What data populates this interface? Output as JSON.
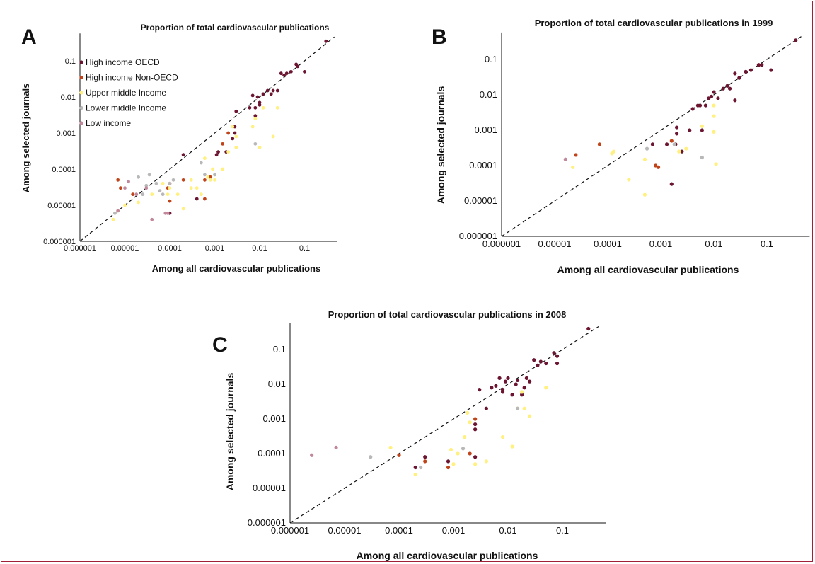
{
  "colors": {
    "High income OECD": "#6b1530",
    "High income Non-OECD": "#c0441a",
    "Upper middle Income": "#fff080",
    "Lower middle Income": "#b8b8b8",
    "Low income": "#c0889a",
    "frame": "#a0203a"
  },
  "chart_data": [
    {
      "panel": "A",
      "type": "scatter",
      "title": "Proportion of total cardiovascular publications",
      "xlabel": "Among all cardiovascular publications",
      "ylabel": "Among selected journals",
      "xscale": "log",
      "yscale": "log",
      "xlim": [
        1e-06,
        0.4
      ],
      "ylim": [
        1e-06,
        0.4
      ],
      "xticks": [
        "0.000001",
        "0.00001",
        "0.0001",
        "0.001",
        "0.01",
        "0.1"
      ],
      "yticks": [
        "0.000001",
        "0.00001",
        "0.0001",
        "0.001",
        "0.01",
        "0.1"
      ],
      "reference_line": "y = x (dashed)",
      "legend": [
        "High income OECD",
        "High income Non-OECD",
        "Upper middle Income",
        "Lower middle Income",
        "Low income"
      ],
      "legend_position": "top-left",
      "series": [
        {
          "name": "High income OECD",
          "points": [
            [
              0.3,
              0.35
            ],
            [
              0.1,
              0.05
            ],
            [
              0.07,
              0.07
            ],
            [
              0.065,
              0.08
            ],
            [
              0.05,
              0.05
            ],
            [
              0.04,
              0.045
            ],
            [
              0.035,
              0.04
            ],
            [
              0.03,
              0.045
            ],
            [
              0.025,
              0.015
            ],
            [
              0.02,
              0.015
            ],
            [
              0.018,
              0.012
            ],
            [
              0.015,
              0.015
            ],
            [
              0.012,
              0.012
            ],
            [
              0.01,
              0.007
            ],
            [
              0.01,
              0.006
            ],
            [
              0.009,
              0.01
            ],
            [
              0.008,
              0.003
            ],
            [
              0.008,
              0.005
            ],
            [
              0.007,
              0.011
            ],
            [
              0.006,
              0.005
            ],
            [
              0.003,
              0.004
            ],
            [
              0.0028,
              0.0015
            ],
            [
              0.0028,
              0.001
            ],
            [
              0.0025,
              0.0007
            ],
            [
              0.0018,
              0.0003
            ],
            [
              0.0012,
              0.0003
            ],
            [
              0.0011,
              0.00025
            ],
            [
              0.0002,
              0.00025
            ],
            [
              0.0004,
              1.5e-05
            ],
            [
              0.0001,
              6e-06
            ]
          ]
        },
        {
          "name": "High income Non-OECD",
          "points": [
            [
              7e-06,
              5e-05
            ],
            [
              8e-06,
              3e-05
            ],
            [
              1.5e-05,
              2e-05
            ],
            [
              9e-05,
              3e-05
            ],
            [
              0.0001,
              1.3e-05
            ],
            [
              0.0001,
              4e-05
            ],
            [
              0.0002,
              5e-05
            ],
            [
              0.0006,
              5e-05
            ],
            [
              0.0006,
              1.5e-05
            ],
            [
              0.0008,
              6e-05
            ],
            [
              0.0015,
              0.0005
            ],
            [
              0.002,
              0.001
            ]
          ]
        },
        {
          "name": "Upper middle Income",
          "points": [
            [
              5.5e-06,
              4e-06
            ],
            [
              7e-06,
              7e-06
            ],
            [
              1e-05,
              1e-05
            ],
            [
              2e-05,
              1.2e-05
            ],
            [
              4e-05,
              2e-05
            ],
            [
              7e-05,
              4e-05
            ],
            [
              9e-05,
              2e-05
            ],
            [
              0.0001,
              3e-05
            ],
            [
              0.00015,
              2e-05
            ],
            [
              0.0002,
              8e-06
            ],
            [
              0.0003,
              3e-05
            ],
            [
              0.0003,
              5e-05
            ],
            [
              0.0004,
              3e-05
            ],
            [
              0.0005,
              2e-05
            ],
            [
              0.0006,
              0.0002
            ],
            [
              0.0007,
              6e-05
            ],
            [
              0.0008,
              5e-05
            ],
            [
              0.0009,
              0.0001
            ],
            [
              0.001,
              5e-05
            ],
            [
              0.0015,
              0.0001
            ],
            [
              0.002,
              0.0003
            ],
            [
              0.0025,
              0.0015
            ],
            [
              0.003,
              0.0008
            ],
            [
              0.007,
              0.0015
            ],
            [
              0.008,
              0.0025
            ],
            [
              0.01,
              0.0004
            ],
            [
              0.012,
              0.005
            ],
            [
              0.02,
              0.0008
            ],
            [
              0.025,
              0.005
            ],
            [
              0.003,
              0.0004
            ]
          ]
        },
        {
          "name": "Lower middle Income",
          "points": [
            [
              6e-06,
              6e-06
            ],
            [
              2e-05,
              6e-05
            ],
            [
              2.5e-05,
              2e-05
            ],
            [
              3e-05,
              3.5e-05
            ],
            [
              3.5e-05,
              7e-05
            ],
            [
              5e-05,
              4e-05
            ],
            [
              6e-05,
              2.5e-05
            ],
            [
              7e-05,
              2e-05
            ],
            [
              0.0001,
              4e-05
            ],
            [
              0.00012,
              5e-05
            ],
            [
              0.0005,
              0.00015
            ],
            [
              0.0006,
              7e-05
            ],
            [
              0.001,
              7e-05
            ],
            [
              0.008,
              0.0005
            ]
          ]
        },
        {
          "name": "Low income",
          "points": [
            [
              7e-06,
              7e-06
            ],
            [
              1e-05,
              3e-05
            ],
            [
              1.2e-05,
              4.5e-05
            ],
            [
              1.8e-05,
              2e-05
            ],
            [
              3e-05,
              3e-05
            ],
            [
              4e-05,
              4e-06
            ],
            [
              8e-05,
              6e-06
            ],
            [
              9e-05,
              6e-06
            ]
          ]
        }
      ]
    },
    {
      "panel": "B",
      "type": "scatter",
      "title": "Proportion of total cardiovascular publications in 1999",
      "xlabel": "Among all cardiovascular publications",
      "ylabel": "Among selected journals",
      "xscale": "log",
      "yscale": "log",
      "xlim": [
        1e-06,
        0.5
      ],
      "ylim": [
        1e-06,
        0.4
      ],
      "xticks": [
        "0.000001",
        "0.00001",
        "0.0001",
        "0.001",
        "0.01",
        "0.1"
      ],
      "yticks": [
        "0.000001",
        "0.00001",
        "0.0001",
        "0.001",
        "0.01",
        "0.1"
      ],
      "reference_line": "y = x (dashed)",
      "series": [
        {
          "name": "High income OECD",
          "points": [
            [
              0.35,
              0.35
            ],
            [
              0.12,
              0.05
            ],
            [
              0.08,
              0.07
            ],
            [
              0.07,
              0.07
            ],
            [
              0.05,
              0.05
            ],
            [
              0.04,
              0.045
            ],
            [
              0.03,
              0.03
            ],
            [
              0.025,
              0.04
            ],
            [
              0.02,
              0.015
            ],
            [
              0.018,
              0.018
            ],
            [
              0.015,
              0.015
            ],
            [
              0.012,
              0.008
            ],
            [
              0.01,
              0.012
            ],
            [
              0.009,
              0.009
            ],
            [
              0.008,
              0.008
            ],
            [
              0.007,
              0.005
            ],
            [
              0.0055,
              0.005
            ],
            [
              0.005,
              0.005
            ],
            [
              0.004,
              0.004
            ],
            [
              0.0035,
              0.001
            ],
            [
              0.0025,
              0.00025
            ],
            [
              0.002,
              0.0012
            ],
            [
              0.002,
              0.0008
            ],
            [
              0.0019,
              0.0004
            ],
            [
              0.0013,
              0.0004
            ],
            [
              0.0016,
              3e-05
            ],
            [
              0.006,
              0.001
            ],
            [
              0.025,
              0.007
            ],
            [
              0.0007,
              0.0004
            ]
          ]
        },
        {
          "name": "High income Non-OECD",
          "points": [
            [
              2.5e-05,
              0.0002
            ],
            [
              7e-05,
              0.0004
            ],
            [
              0.0008,
              0.0001
            ],
            [
              0.0009,
              9e-05
            ],
            [
              0.0016,
              0.0005
            ]
          ]
        },
        {
          "name": "Upper middle Income",
          "points": [
            [
              2.2e-05,
              9e-05
            ],
            [
              0.00012,
              0.00022
            ],
            [
              0.00013,
              0.00025
            ],
            [
              0.00025,
              4e-05
            ],
            [
              0.0005,
              0.00015
            ],
            [
              0.0005,
              1.5e-05
            ],
            [
              0.0022,
              0.00025
            ],
            [
              0.003,
              0.0003
            ],
            [
              0.01,
              0.0025
            ],
            [
              0.01,
              0.0009
            ],
            [
              0.011,
              0.00011
            ],
            [
              0.01,
              0.005
            ],
            [
              0.006,
              0.0013
            ]
          ]
        },
        {
          "name": "Lower middle Income",
          "points": [
            [
              0.00055,
              0.0003
            ],
            [
              0.006,
              0.00017
            ],
            [
              0.0018,
              0.0004
            ]
          ]
        },
        {
          "name": "Low income",
          "points": [
            [
              1.6e-05,
              0.00015
            ]
          ]
        }
      ]
    },
    {
      "panel": "C",
      "type": "scatter",
      "title": "Proportion of total cardiovascular publications in 2008",
      "xlabel": "Among all cardiovascular publications",
      "ylabel": "Among selected journals",
      "xscale": "log",
      "yscale": "log",
      "xlim": [
        1e-06,
        0.5
      ],
      "ylim": [
        1e-06,
        0.4
      ],
      "xticks": [
        "0.000001",
        "0.00001",
        "0.0001",
        "0.001",
        "0.01",
        "0.1"
      ],
      "yticks": [
        "0.000001",
        "0.00001",
        "0.0001",
        "0.001",
        "0.01",
        "0.1"
      ],
      "reference_line": "y = x (dashed)",
      "series": [
        {
          "name": "High income OECD",
          "points": [
            [
              0.3,
              0.4
            ],
            [
              0.07,
              0.08
            ],
            [
              0.08,
              0.065
            ],
            [
              0.08,
              0.04
            ],
            [
              0.05,
              0.04
            ],
            [
              0.04,
              0.045
            ],
            [
              0.035,
              0.035
            ],
            [
              0.03,
              0.05
            ],
            [
              0.025,
              0.012
            ],
            [
              0.022,
              0.015
            ],
            [
              0.02,
              0.008
            ],
            [
              0.018,
              0.005
            ],
            [
              0.015,
              0.013
            ],
            [
              0.014,
              0.01
            ],
            [
              0.012,
              0.005
            ],
            [
              0.01,
              0.015
            ],
            [
              0.009,
              0.012
            ],
            [
              0.008,
              0.007
            ],
            [
              0.008,
              0.006
            ],
            [
              0.007,
              0.015
            ],
            [
              0.006,
              0.009
            ],
            [
              0.005,
              0.008
            ],
            [
              0.004,
              0.002
            ],
            [
              0.003,
              0.007
            ],
            [
              0.0025,
              0.0007
            ],
            [
              0.0025,
              0.0005
            ],
            [
              0.0003,
              8e-05
            ],
            [
              0.0002,
              4e-05
            ],
            [
              0.0025,
              8e-05
            ],
            [
              0.0008,
              6e-05
            ]
          ]
        },
        {
          "name": "High income Non-OECD",
          "points": [
            [
              0.0001,
              9e-05
            ],
            [
              0.0003,
              6e-05
            ],
            [
              0.002,
              0.0001
            ],
            [
              0.0025,
              0.001
            ],
            [
              0.0008,
              4e-05
            ]
          ]
        },
        {
          "name": "Upper middle Income",
          "points": [
            [
              7e-05,
              0.00015
            ],
            [
              0.0002,
              2.5e-05
            ],
            [
              0.0009,
              0.00013
            ],
            [
              0.001,
              5e-05
            ],
            [
              0.0012,
              0.0001
            ],
            [
              0.0016,
              0.0003
            ],
            [
              0.002,
              0.0008
            ],
            [
              0.0025,
              5e-05
            ],
            [
              0.0018,
              0.0015
            ],
            [
              0.008,
              0.0003
            ],
            [
              0.012,
              0.00016
            ],
            [
              0.015,
              0.002
            ],
            [
              0.02,
              0.002
            ],
            [
              0.025,
              0.0012
            ],
            [
              0.05,
              0.008
            ],
            [
              0.018,
              0.006
            ],
            [
              0.004,
              6e-05
            ]
          ]
        },
        {
          "name": "Lower middle Income",
          "points": [
            [
              3e-05,
              8e-05
            ],
            [
              0.00025,
              4e-05
            ],
            [
              0.0015,
              0.00014
            ],
            [
              0.015,
              0.002
            ]
          ]
        },
        {
          "name": "Low income",
          "points": [
            [
              2.5e-06,
              9e-05
            ],
            [
              7e-06,
              0.00015
            ]
          ]
        }
      ]
    }
  ]
}
